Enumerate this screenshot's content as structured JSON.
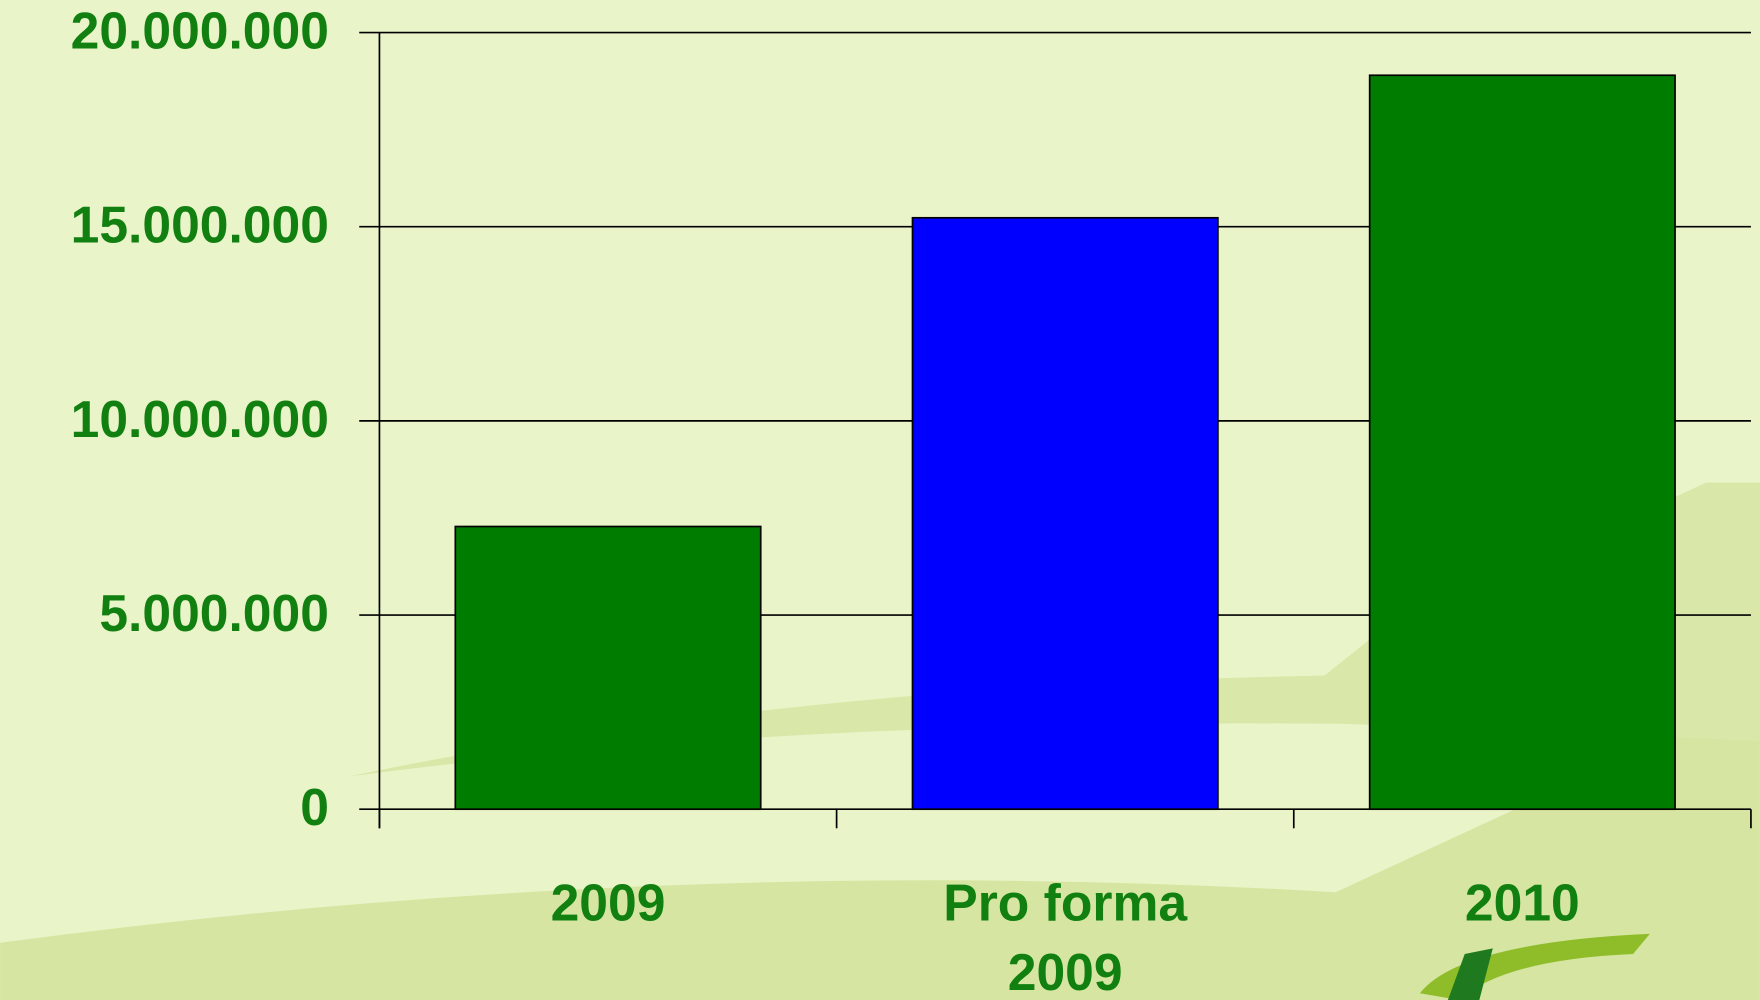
{
  "chart_data": {
    "type": "bar",
    "categories": [
      "2009",
      "Pro forma 2009",
      "2010"
    ],
    "values": [
      7280000,
      15230000,
      18900000
    ],
    "colors": [
      "#007d00",
      "#0000ff",
      "#007d00"
    ],
    "ylim": [
      0,
      20000000
    ],
    "yticks": [
      0,
      {
        "value": 5000000,
        "label": "5.000.000"
      },
      {
        "value": 10000000,
        "label": "10.000.000"
      },
      {
        "value": 15000000,
        "label": "15.000.000"
      },
      {
        "value": 20000000,
        "label": "20.000.000"
      }
    ],
    "grid": true
  }
}
